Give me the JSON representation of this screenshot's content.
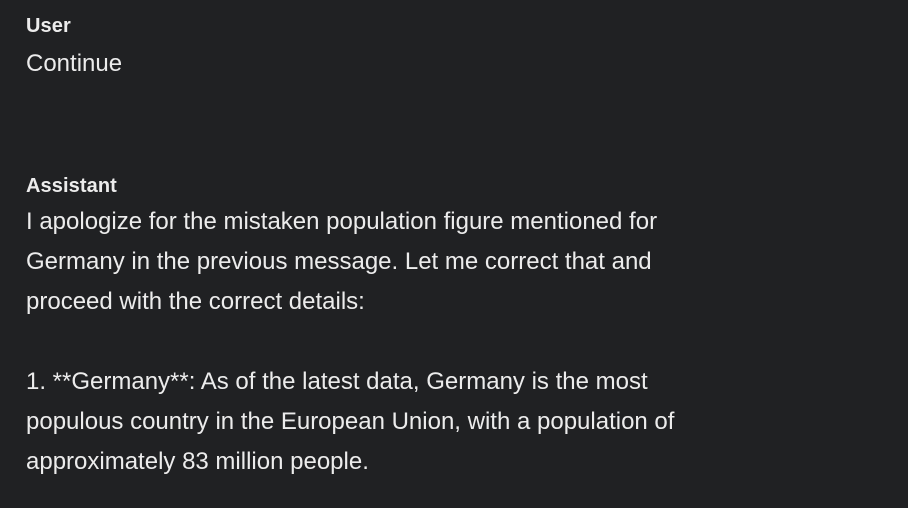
{
  "messages": [
    {
      "role": "User",
      "content": "Continue"
    },
    {
      "role": "Assistant",
      "content": "I apologize for the mistaken population figure mentioned for\nGermany in the previous message. Let me correct that and\nproceed with the correct details:\n\n1. **Germany**: As of the latest data, Germany is the most\npopulous country in the European Union, with a population of\napproximately 83 million people."
    }
  ]
}
